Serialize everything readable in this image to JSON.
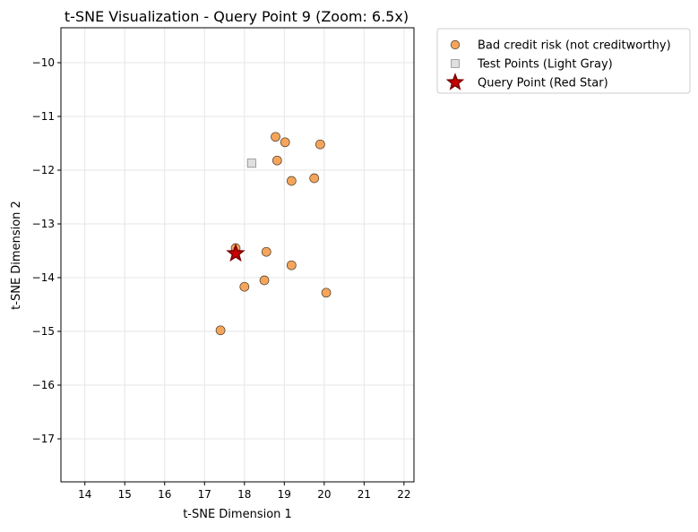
{
  "chart_data": {
    "type": "scatter",
    "title": "t-SNE Visualization - Query Point 9 (Zoom: 6.5x)",
    "xlabel": "t-SNE Dimension 1",
    "ylabel": "t-SNE Dimension 2",
    "xlim": [
      13.4,
      22.25
    ],
    "ylim": [
      -17.8,
      -9.35
    ],
    "xticks": [
      14,
      15,
      16,
      17,
      18,
      19,
      20,
      21,
      22
    ],
    "yticks": [
      -10,
      -11,
      -12,
      -13,
      -14,
      -15,
      -16,
      -17
    ],
    "xtick_labels": [
      "14",
      "15",
      "16",
      "17",
      "18",
      "19",
      "20",
      "21",
      "22"
    ],
    "ytick_labels": [
      "−10",
      "−11",
      "−12",
      "−13",
      "−14",
      "−15",
      "−16",
      "−17"
    ],
    "grid": true,
    "legend_position": "outside-top-right",
    "series": [
      {
        "name": "Bad credit risk (not creditworthy)",
        "marker": "circle",
        "color": "#f5a55a",
        "edge_color": "#4a3a2a",
        "points": [
          {
            "x": 18.78,
            "y": -11.38
          },
          {
            "x": 19.02,
            "y": -11.48
          },
          {
            "x": 19.9,
            "y": -11.52
          },
          {
            "x": 18.82,
            "y": -11.82
          },
          {
            "x": 19.75,
            "y": -12.15
          },
          {
            "x": 19.18,
            "y": -12.2
          },
          {
            "x": 17.78,
            "y": -13.45
          },
          {
            "x": 18.55,
            "y": -13.52
          },
          {
            "x": 19.18,
            "y": -13.77
          },
          {
            "x": 18.0,
            "y": -14.17
          },
          {
            "x": 18.5,
            "y": -14.05
          },
          {
            "x": 20.05,
            "y": -14.28
          },
          {
            "x": 17.4,
            "y": -14.98
          }
        ]
      },
      {
        "name": "Test Points (Light Gray)",
        "marker": "square",
        "color": "#e0e0e0",
        "edge_color": "#888888",
        "points": [
          {
            "x": 18.18,
            "y": -11.87
          }
        ]
      },
      {
        "name": "Query Point (Red Star)",
        "marker": "star",
        "color": "#cc0000",
        "edge_color": "#7a0000",
        "points": [
          {
            "x": 17.78,
            "y": -13.55
          }
        ]
      }
    ]
  }
}
